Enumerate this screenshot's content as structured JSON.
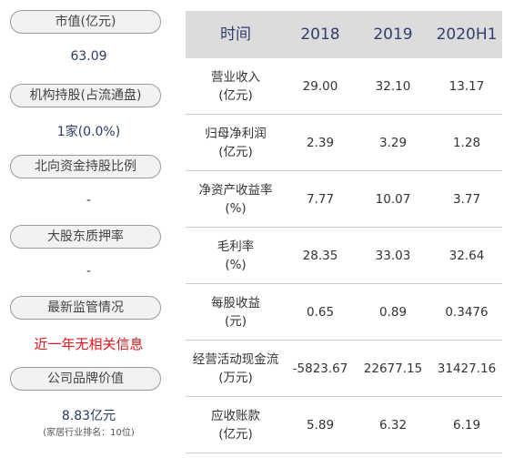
{
  "left": {
    "market_cap": {
      "label": "市值(亿元)",
      "value": "63.09"
    },
    "institution": {
      "label": "机构持股(占流通盘)",
      "value": "1家(0.0%)"
    },
    "northbound": {
      "label": "北向资金持股比例",
      "value": "-"
    },
    "pledge": {
      "label": "大股东质押率",
      "value": "-"
    },
    "regulation": {
      "label": "最新监管情况",
      "value": "近一年无相关信息"
    },
    "brand": {
      "label": "公司品牌价值",
      "value": "8.83亿元",
      "note": "(家居行业排名：10位)"
    }
  },
  "table": {
    "headers": [
      "时间",
      "2018",
      "2019",
      "2020H1"
    ],
    "rows": [
      {
        "label1": "营业收入",
        "label2": "(亿元)",
        "values": [
          "29.00",
          "32.10",
          "13.17"
        ]
      },
      {
        "label1": "归母净利润",
        "label2": "(亿元)",
        "values": [
          "2.39",
          "3.29",
          "1.28"
        ]
      },
      {
        "label1": "净资产收益率",
        "label2": "(%)",
        "values": [
          "7.77",
          "10.07",
          "3.77"
        ]
      },
      {
        "label1": "毛利率",
        "label2": "(%)",
        "values": [
          "28.35",
          "33.03",
          "32.64"
        ]
      },
      {
        "label1": "每股收益",
        "label2": "(元)",
        "values": [
          "0.65",
          "0.89",
          "0.3476"
        ]
      },
      {
        "label1": "经营活动现金流",
        "label2": "(万元)",
        "values": [
          "-5823.67",
          "22677.15",
          "31427.16"
        ]
      },
      {
        "label1": "应收账款",
        "label2": "(亿元)",
        "values": [
          "5.89",
          "6.32",
          "6.19"
        ]
      }
    ]
  },
  "colors": {
    "accent_red": "#e2161b",
    "value_blue": "#2a3a62",
    "header_bg": "#dcdcdc"
  }
}
